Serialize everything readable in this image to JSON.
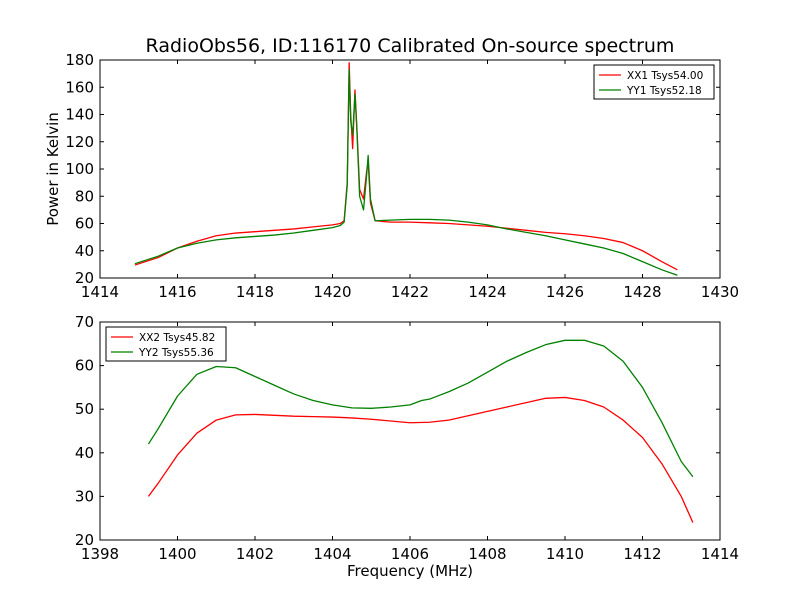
{
  "figure": {
    "title": "RadioObs56, ID:116170 Calibrated On-source spectrum",
    "ylabel": "Power in Kelvin",
    "xlabel": "Frequency (MHz)"
  },
  "chart_data": [
    {
      "type": "line",
      "title": "RadioObs56, ID:116170 Calibrated On-source spectrum",
      "ylabel": "Power in Kelvin",
      "xlabel": "",
      "xlim": [
        1414,
        1430
      ],
      "ylim": [
        20,
        180
      ],
      "xticks": [
        1414,
        1416,
        1418,
        1420,
        1422,
        1424,
        1426,
        1428,
        1430
      ],
      "yticks": [
        20,
        40,
        60,
        80,
        100,
        120,
        140,
        160,
        180
      ],
      "legend_position": "top-right",
      "grid": false,
      "series": [
        {
          "name": "XX1 Tsys54.00",
          "color": "#ff0000",
          "points": [
            [
              1414.9,
              29.5
            ],
            [
              1415.5,
              35
            ],
            [
              1416,
              42
            ],
            [
              1416.5,
              47
            ],
            [
              1417,
              51
            ],
            [
              1417.5,
              53
            ],
            [
              1418,
              54
            ],
            [
              1418.5,
              55
            ],
            [
              1419,
              56
            ],
            [
              1419.5,
              57.5
            ],
            [
              1420,
              59
            ],
            [
              1420.2,
              60
            ],
            [
              1420.3,
              62
            ],
            [
              1420.38,
              90
            ],
            [
              1420.43,
              178
            ],
            [
              1420.47,
              140
            ],
            [
              1420.52,
              115
            ],
            [
              1420.58,
              158
            ],
            [
              1420.63,
              130
            ],
            [
              1420.7,
              85
            ],
            [
              1420.8,
              78
            ],
            [
              1420.88,
              98
            ],
            [
              1420.92,
              105
            ],
            [
              1420.98,
              75
            ],
            [
              1421.1,
              62
            ],
            [
              1421.5,
              61
            ],
            [
              1422,
              61
            ],
            [
              1422.5,
              60.5
            ],
            [
              1423,
              60
            ],
            [
              1423.5,
              59
            ],
            [
              1424,
              58
            ],
            [
              1424.5,
              56.5
            ],
            [
              1425,
              55
            ],
            [
              1425.5,
              53.5
            ],
            [
              1426,
              52.5
            ],
            [
              1426.5,
              51
            ],
            [
              1427,
              49
            ],
            [
              1427.5,
              46
            ],
            [
              1428,
              40
            ],
            [
              1428.5,
              32
            ],
            [
              1428.9,
              26
            ]
          ]
        },
        {
          "name": "YY1 Tsys52.18",
          "color": "#008000",
          "points": [
            [
              1414.9,
              30.5
            ],
            [
              1415.5,
              36
            ],
            [
              1416,
              42
            ],
            [
              1416.5,
              45.5
            ],
            [
              1417,
              48
            ],
            [
              1417.5,
              49.5
            ],
            [
              1418,
              50.5
            ],
            [
              1418.5,
              51.5
            ],
            [
              1419,
              53
            ],
            [
              1419.5,
              55
            ],
            [
              1420,
              57
            ],
            [
              1420.2,
              58.5
            ],
            [
              1420.3,
              61
            ],
            [
              1420.38,
              88
            ],
            [
              1420.43,
              173
            ],
            [
              1420.47,
              135
            ],
            [
              1420.52,
              125
            ],
            [
              1420.58,
              155
            ],
            [
              1420.63,
              128
            ],
            [
              1420.7,
              80
            ],
            [
              1420.8,
              70
            ],
            [
              1420.88,
              95
            ],
            [
              1420.92,
              110
            ],
            [
              1420.98,
              78
            ],
            [
              1421.1,
              62
            ],
            [
              1421.5,
              62.5
            ],
            [
              1422,
              63
            ],
            [
              1422.5,
              63
            ],
            [
              1423,
              62.5
            ],
            [
              1423.5,
              61
            ],
            [
              1424,
              59
            ],
            [
              1424.5,
              56
            ],
            [
              1425,
              53.5
            ],
            [
              1425.5,
              51
            ],
            [
              1426,
              48
            ],
            [
              1426.5,
              45
            ],
            [
              1427,
              42
            ],
            [
              1427.5,
              38
            ],
            [
              1428,
              32
            ],
            [
              1428.5,
              26
            ],
            [
              1428.9,
              22
            ]
          ]
        }
      ]
    },
    {
      "type": "line",
      "title": "",
      "xlabel": "Frequency (MHz)",
      "ylabel": "",
      "xlim": [
        1398,
        1414
      ],
      "ylim": [
        20,
        70
      ],
      "xticks": [
        1398,
        1400,
        1402,
        1404,
        1406,
        1408,
        1410,
        1412,
        1414
      ],
      "yticks": [
        20,
        30,
        40,
        50,
        60,
        70
      ],
      "legend_position": "top-left",
      "grid": false,
      "series": [
        {
          "name": "XX2 Tsys45.82",
          "color": "#ff0000",
          "points": [
            [
              1399.25,
              30
            ],
            [
              1399.5,
              33
            ],
            [
              1400,
              39.5
            ],
            [
              1400.5,
              44.5
            ],
            [
              1401,
              47.5
            ],
            [
              1401.5,
              48.7
            ],
            [
              1402,
              48.8
            ],
            [
              1402.5,
              48.6
            ],
            [
              1403,
              48.4
            ],
            [
              1403.5,
              48.3
            ],
            [
              1404,
              48.2
            ],
            [
              1404.5,
              48
            ],
            [
              1405,
              47.7
            ],
            [
              1405.5,
              47.3
            ],
            [
              1406,
              46.9
            ],
            [
              1406.5,
              47
            ],
            [
              1407,
              47.5
            ],
            [
              1407.5,
              48.5
            ],
            [
              1408,
              49.5
            ],
            [
              1408.5,
              50.5
            ],
            [
              1409,
              51.5
            ],
            [
              1409.5,
              52.5
            ],
            [
              1410,
              52.7
            ],
            [
              1410.5,
              52
            ],
            [
              1411,
              50.5
            ],
            [
              1411.5,
              47.5
            ],
            [
              1412,
              43.5
            ],
            [
              1412.5,
              37.5
            ],
            [
              1413,
              30
            ],
            [
              1413.3,
              24
            ]
          ]
        },
        {
          "name": "YY2 Tsys55.36",
          "color": "#008000",
          "points": [
            [
              1399.25,
              42
            ],
            [
              1399.5,
              45.5
            ],
            [
              1400,
              53
            ],
            [
              1400.5,
              58
            ],
            [
              1401,
              59.8
            ],
            [
              1401.5,
              59.5
            ],
            [
              1402,
              57.5
            ],
            [
              1402.5,
              55.5
            ],
            [
              1403,
              53.5
            ],
            [
              1403.5,
              52
            ],
            [
              1404,
              51
            ],
            [
              1404.5,
              50.3
            ],
            [
              1405,
              50.2
            ],
            [
              1405.5,
              50.5
            ],
            [
              1406,
              51
            ],
            [
              1406.3,
              52
            ],
            [
              1406.5,
              52.3
            ],
            [
              1407,
              54
            ],
            [
              1407.5,
              56
            ],
            [
              1408,
              58.5
            ],
            [
              1408.5,
              61
            ],
            [
              1409,
              63
            ],
            [
              1409.5,
              64.8
            ],
            [
              1410,
              65.8
            ],
            [
              1410.5,
              65.8
            ],
            [
              1411,
              64.5
            ],
            [
              1411.5,
              61
            ],
            [
              1412,
              55
            ],
            [
              1412.5,
              47
            ],
            [
              1413,
              38
            ],
            [
              1413.3,
              34.5
            ]
          ]
        }
      ]
    }
  ]
}
